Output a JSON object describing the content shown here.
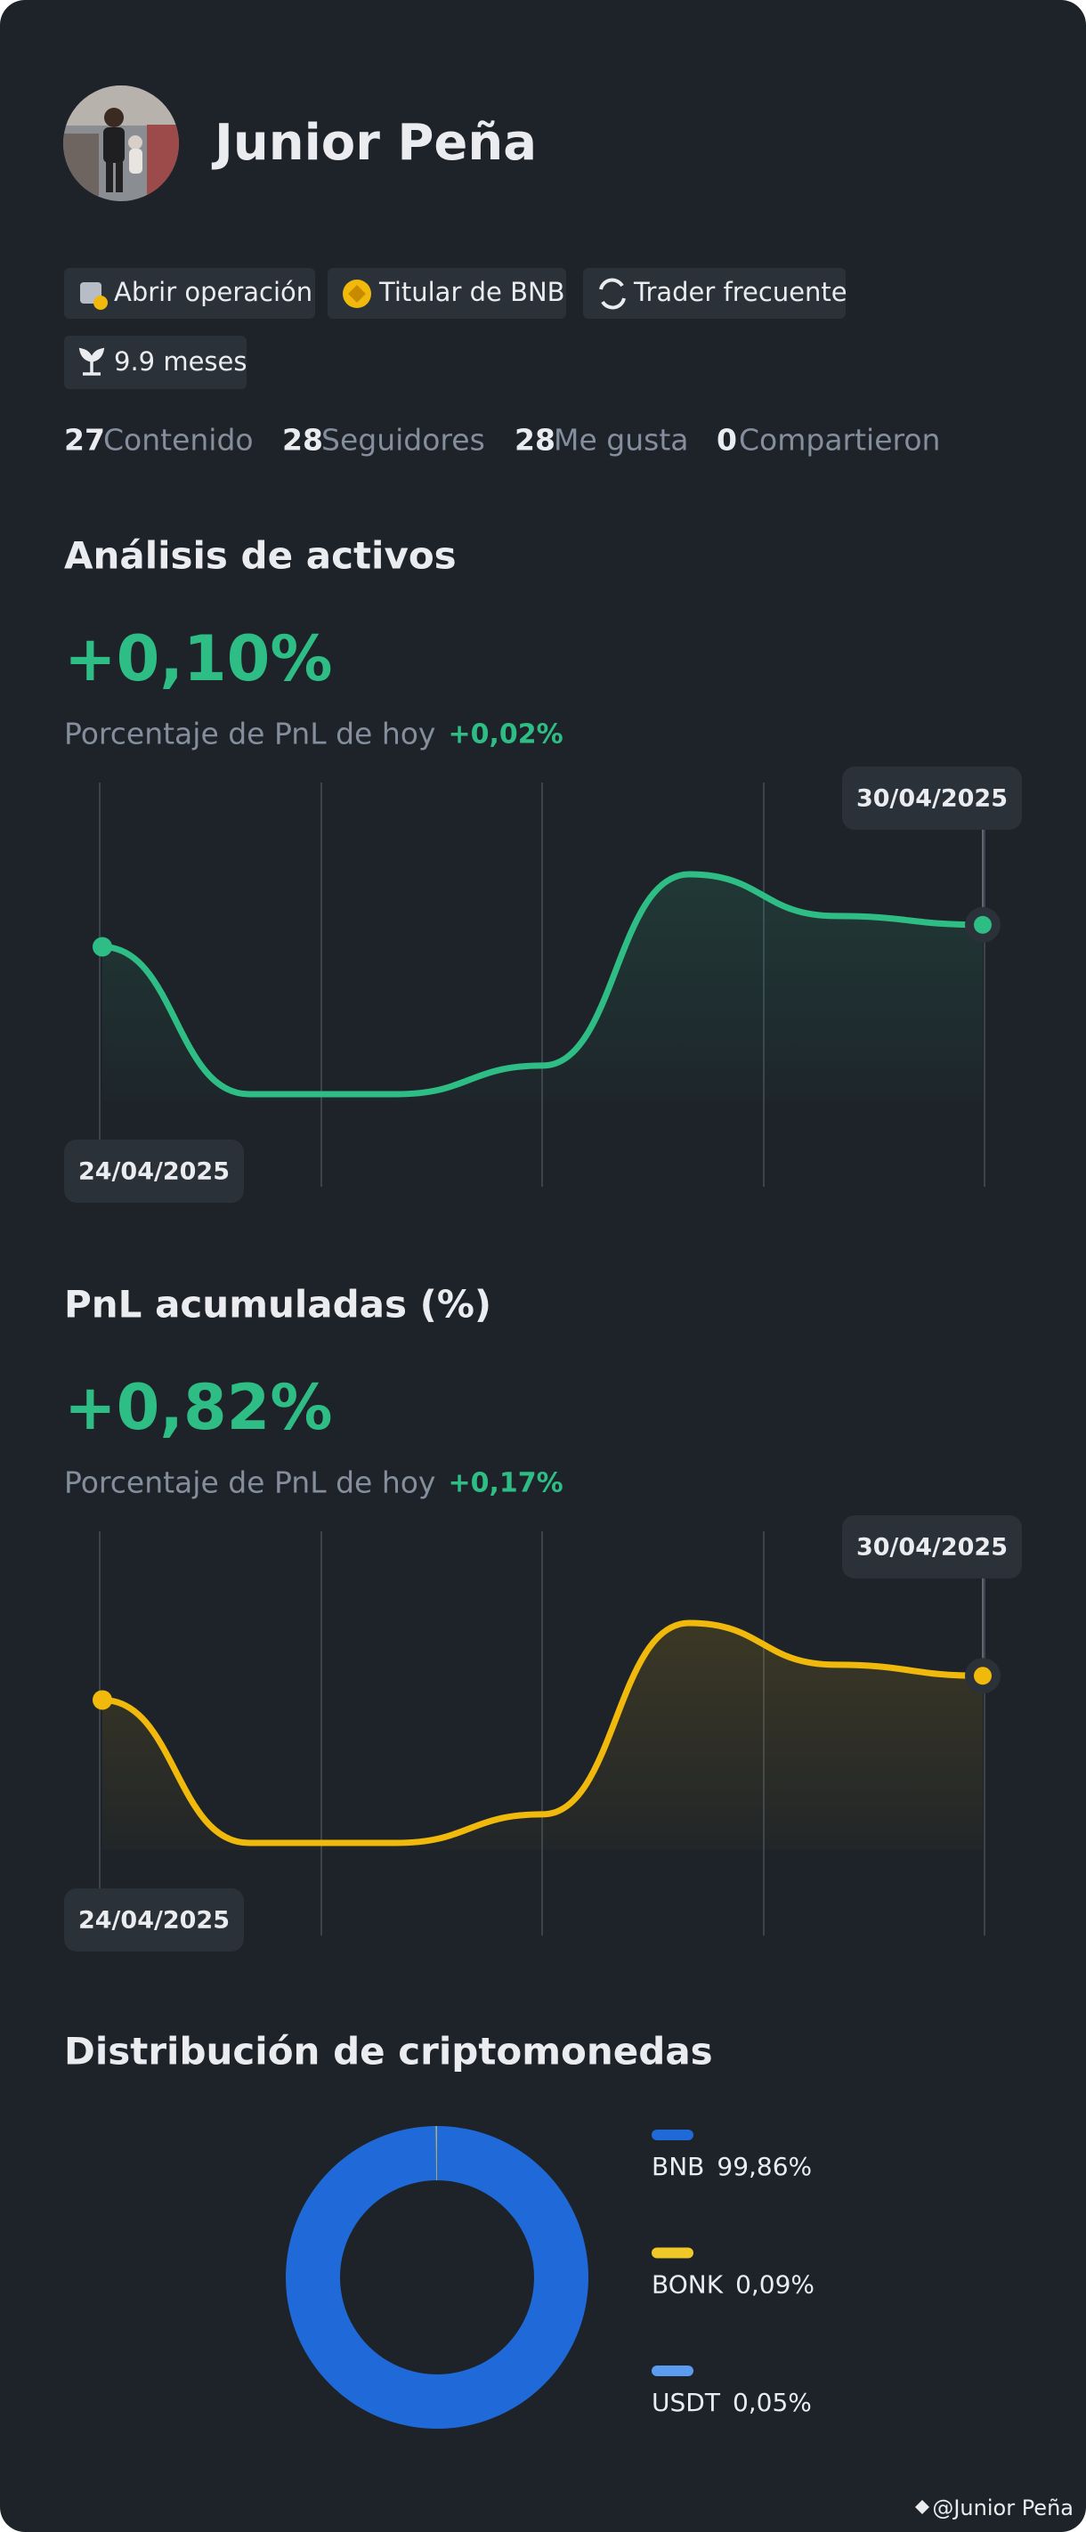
{
  "profile": {
    "name": "Junior Peña",
    "badges": [
      "Abrir operación",
      "Titular de BNB",
      "Trader frecuente",
      "9.9 meses"
    ],
    "stats": [
      {
        "count": 27,
        "label": "Contenido"
      },
      {
        "count": 28,
        "label": "Seguidores"
      },
      {
        "count": 28,
        "label": "Me gusta"
      },
      {
        "count": 0,
        "label": "Compartieron"
      }
    ],
    "watermark": "@Junior Peña"
  },
  "chart_data": [
    {
      "type": "line",
      "title": "Análisis de activos",
      "headline": "+0,10%",
      "subtitle": "Porcentaje de PnL de hoy",
      "change": "+0,02%",
      "categories": [
        "24/04/2025",
        null,
        null,
        null,
        null,
        null,
        "30/04/2025"
      ],
      "values": [
        0.67,
        0,
        0,
        0.13,
        1,
        0.81,
        0.77
      ],
      "color": "#2ebd85"
    },
    {
      "type": "line",
      "title": "PnL acumuladas (%)",
      "headline": "+0,82%",
      "subtitle": "Porcentaje de PnL de hoy",
      "change": "+0,17%",
      "categories": [
        "24/04/2025",
        null,
        null,
        null,
        null,
        null,
        "30/04/2025"
      ],
      "values": [
        0.65,
        0,
        0,
        0.13,
        1,
        0.81,
        0.76
      ],
      "color": "#f0b90b"
    },
    {
      "type": "pie",
      "title": "Distribución de criptomonedas",
      "categories": [
        "BNB",
        "BONK",
        "USDT"
      ],
      "values": [
        99.86,
        0.09,
        0.05
      ],
      "value_labels": [
        "99,86%",
        "0,09%",
        "0,05%"
      ],
      "colors": [
        "#1f6ad8",
        "#f0c929",
        "#5b9cf0"
      ]
    }
  ]
}
